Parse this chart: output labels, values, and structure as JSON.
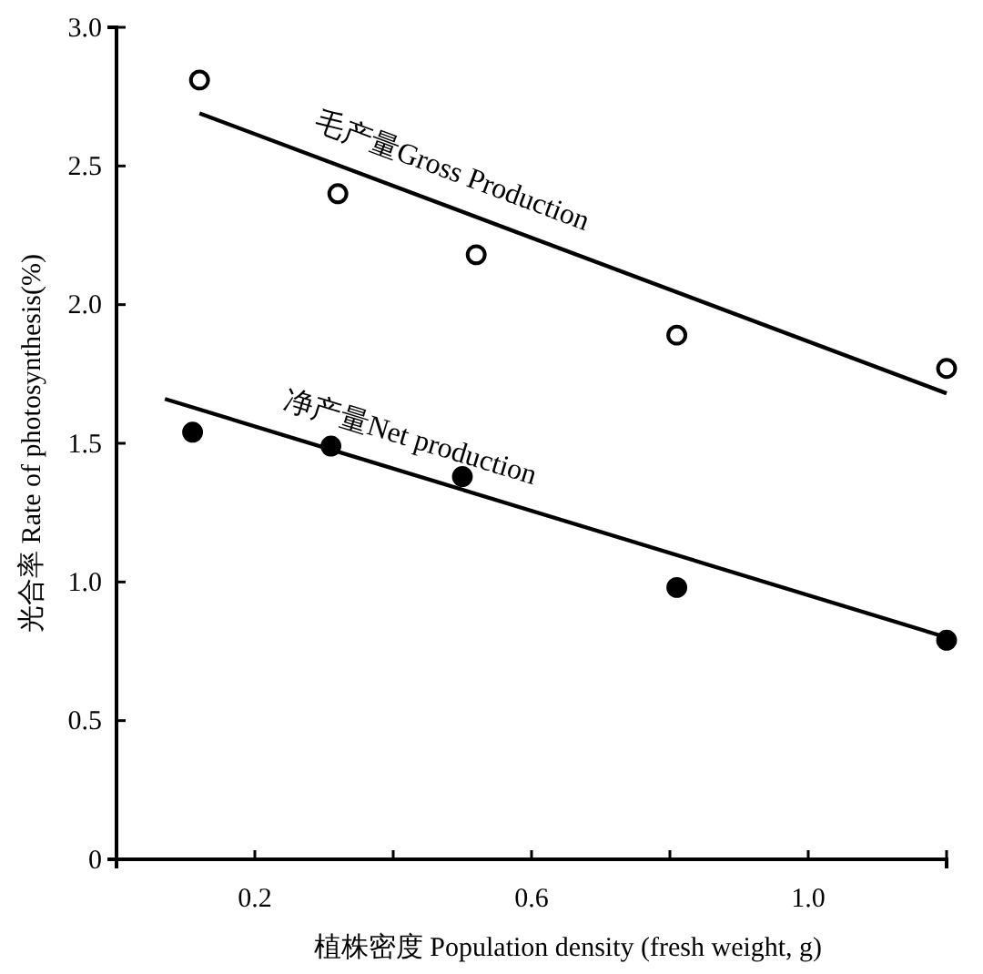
{
  "chart_data": {
    "type": "scatter",
    "xlabel": "植株密度 Population density (fresh weight, g)",
    "ylabel": "光合率 Rate of photosynthesis(%)",
    "xlim": [
      0,
      1.2
    ],
    "ylim": [
      0,
      3.0
    ],
    "xticks": [
      {
        "value": 0.2,
        "label": "0.2"
      },
      {
        "value": 0.4,
        "label": null
      },
      {
        "value": 0.6,
        "label": "0.6"
      },
      {
        "value": 0.8,
        "label": null
      },
      {
        "value": 1.0,
        "label": "1.0"
      },
      {
        "value": 1.2,
        "label": null
      }
    ],
    "yticks": [
      {
        "value": 0,
        "label": "0"
      },
      {
        "value": 0.5,
        "label": "0.5"
      },
      {
        "value": 1.0,
        "label": "1.0"
      },
      {
        "value": 1.5,
        "label": "1.5"
      },
      {
        "value": 2.0,
        "label": "2.0"
      },
      {
        "value": 2.5,
        "label": "2.5"
      },
      {
        "value": 3.0,
        "label": "3.0"
      }
    ],
    "marker": "circle",
    "grid": false,
    "series": [
      {
        "color": "#ffffff",
        "x": [
          0.12,
          0.32,
          0.52,
          0.81,
          1.2
        ],
        "values": [
          2.81,
          2.4,
          2.18,
          1.89,
          1.77
        ]
      },
      {
        "type": "line",
        "marker": "none",
        "name": "毛产量Gross Production",
        "color": "#000000",
        "x": [
          0.12,
          1.2
        ],
        "values": [
          2.69,
          1.68
        ]
      },
      {
        "color": "#000000",
        "x": [
          0.11,
          0.31,
          0.5,
          0.81,
          1.2
        ],
        "values": [
          1.54,
          1.49,
          1.38,
          0.98,
          0.79
        ]
      },
      {
        "type": "line",
        "marker": "none",
        "name": "净产量Net production",
        "color": "#000000",
        "x": [
          0.07,
          1.2
        ],
        "values": [
          1.66,
          0.8
        ]
      }
    ]
  }
}
